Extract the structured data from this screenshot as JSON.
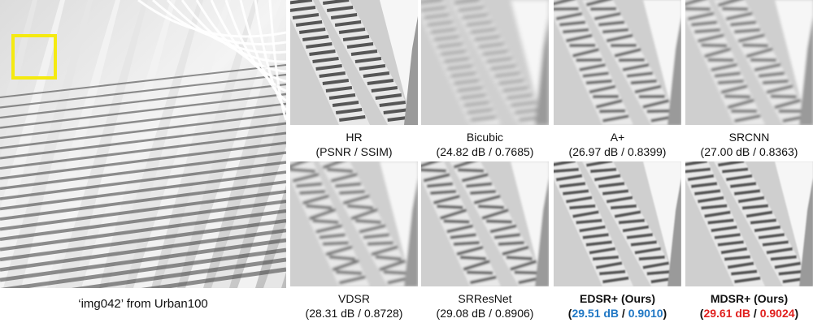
{
  "main_image": {
    "caption": "‘img042’ from Urban100",
    "highlight_color": "#f5ea10"
  },
  "crops": [
    {
      "id": "hr",
      "method": "HR",
      "metric_text": "(PSNR / SSIM)",
      "blur": 0,
      "wave": 0,
      "contrast": 0.95
    },
    {
      "id": "bicubic",
      "method": "Bicubic",
      "psnr": "24.82 dB",
      "ssim": "0.7685",
      "blur": 2.6,
      "wave": 0,
      "contrast": 0.55
    },
    {
      "id": "aplus",
      "method": "A+",
      "psnr": "26.97 dB",
      "ssim": "0.8399",
      "blur": 1.3,
      "wave": 2,
      "contrast": 0.8
    },
    {
      "id": "srcnn",
      "method": "SRCNN",
      "psnr": "27.00 dB",
      "ssim": "0.8363",
      "blur": 1.5,
      "wave": 2.5,
      "contrast": 0.75
    },
    {
      "id": "vdsr",
      "method": "VDSR",
      "psnr": "28.31 dB",
      "ssim": "0.8728",
      "blur": 1.6,
      "wave": 3.5,
      "contrast": 0.75
    },
    {
      "id": "srresnet",
      "method": "SRResNet",
      "psnr": "29.08 dB",
      "ssim": "0.8906",
      "blur": 1.2,
      "wave": 3,
      "contrast": 0.85
    },
    {
      "id": "edsr",
      "method": "EDSR+ (Ours)",
      "psnr": "29.51 dB",
      "ssim": "0.9010",
      "blur": 0.8,
      "wave": 0.8,
      "contrast": 0.95,
      "highlight": "blue"
    },
    {
      "id": "mdsr",
      "method": "MDSR+ (Ours)",
      "psnr": "29.61 dB",
      "ssim": "0.9024",
      "blur": 0.7,
      "wave": 0.5,
      "contrast": 0.97,
      "highlight": "red"
    }
  ],
  "colors": {
    "blue": "#1f77c4",
    "red": "#e0211f"
  }
}
